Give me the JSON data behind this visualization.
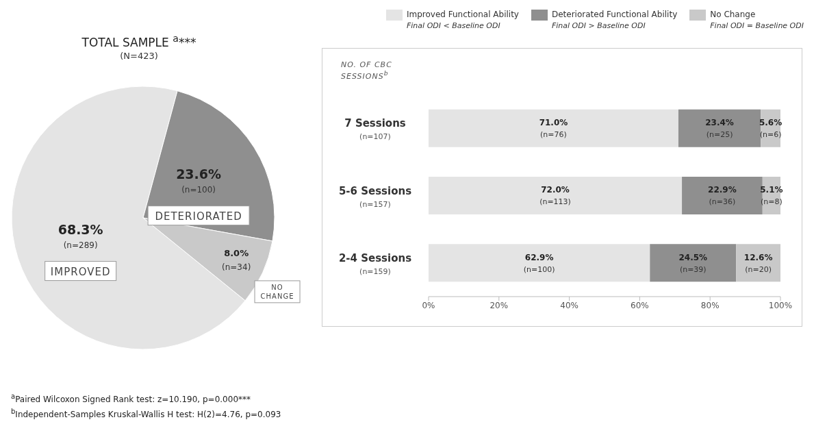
{
  "chart_data": [
    {
      "type": "pie",
      "title": "TOTAL SAMPLE $^{a}$***",
      "subtitle": "(N=423)",
      "categories": [
        "IMPROVED",
        "DETERIORATED",
        "NO CHANGE"
      ],
      "values": [
        68.3,
        23.6,
        8.0
      ],
      "colors": [
        "#e4e4e4",
        "#8f8f8f",
        "#c9c9c9"
      ],
      "value_labels": [
        "68.3%\n(n=289)",
        "23.6%\n(n=100)",
        "8.0%\n(n=34)"
      ]
    },
    {
      "type": "bar",
      "orientation": "horizontal",
      "stacked": true,
      "ylabel": "NO. OF CBC SESSIONS$^{b}$",
      "categories": [
        "7 Sessions\n(n=107)",
        "5-6 Sessions\n(n=157)",
        "2-4 Sessions\n(n=159)"
      ],
      "series": [
        {
          "name": "Improved Functional Ability\nFinal ODI < Baseline ODI",
          "color": "#e4e4e4",
          "values": [
            71.0,
            72.0,
            62.9
          ],
          "value_labels": [
            "71.0%\n(n=76)",
            "72.0%\n(n=113)",
            "62.9%\n(n=100)"
          ]
        },
        {
          "name": "Deteriorated Functional Ability\nFinal ODI > Baseline ODI",
          "color": "#8f8f8f",
          "values": [
            23.4,
            22.9,
            24.5
          ],
          "value_labels": [
            "23.4%\n(n=25)",
            "22.9%\n(n=36)",
            "24.5%\n(n=39)"
          ]
        },
        {
          "name": "No Change\nFinal ODI = Baseline ODI",
          "color": "#c9c9c9",
          "values": [
            5.6,
            5.1,
            12.6
          ],
          "value_labels": [
            "5.6%\n(n=6)",
            "5.1%\n(n=8)",
            "12.6%\n(n=20)"
          ]
        }
      ],
      "xlim": [
        0,
        100
      ],
      "xticks": [
        {
          "value": 0,
          "label": "0%"
        },
        {
          "value": 20,
          "label": "20%"
        },
        {
          "value": 40,
          "label": "40%"
        },
        {
          "value": 60,
          "label": "60%"
        },
        {
          "value": 80,
          "label": "80%"
        },
        {
          "value": 100,
          "label": "100%"
        }
      ],
      "legend": "top right",
      "annotations": [
        "$^{a}$Paired Wilcoxon Signed Rank test: z=10.190, p=0.000***",
        "$^{b}$Independent-Samples Kruskal-Wallis H test: H(2)=4.76, p=0.093"
      ]
    }
  ]
}
